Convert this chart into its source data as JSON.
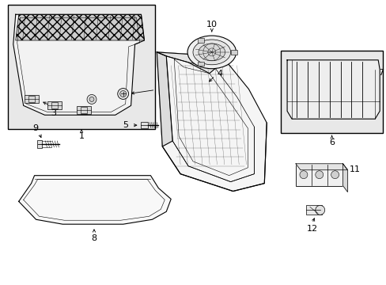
{
  "bg_color": "#ffffff",
  "bg_gray": "#e8e8e8",
  "line_color": "#000000",
  "figsize": [
    4.89,
    3.6
  ],
  "dpi": 100
}
